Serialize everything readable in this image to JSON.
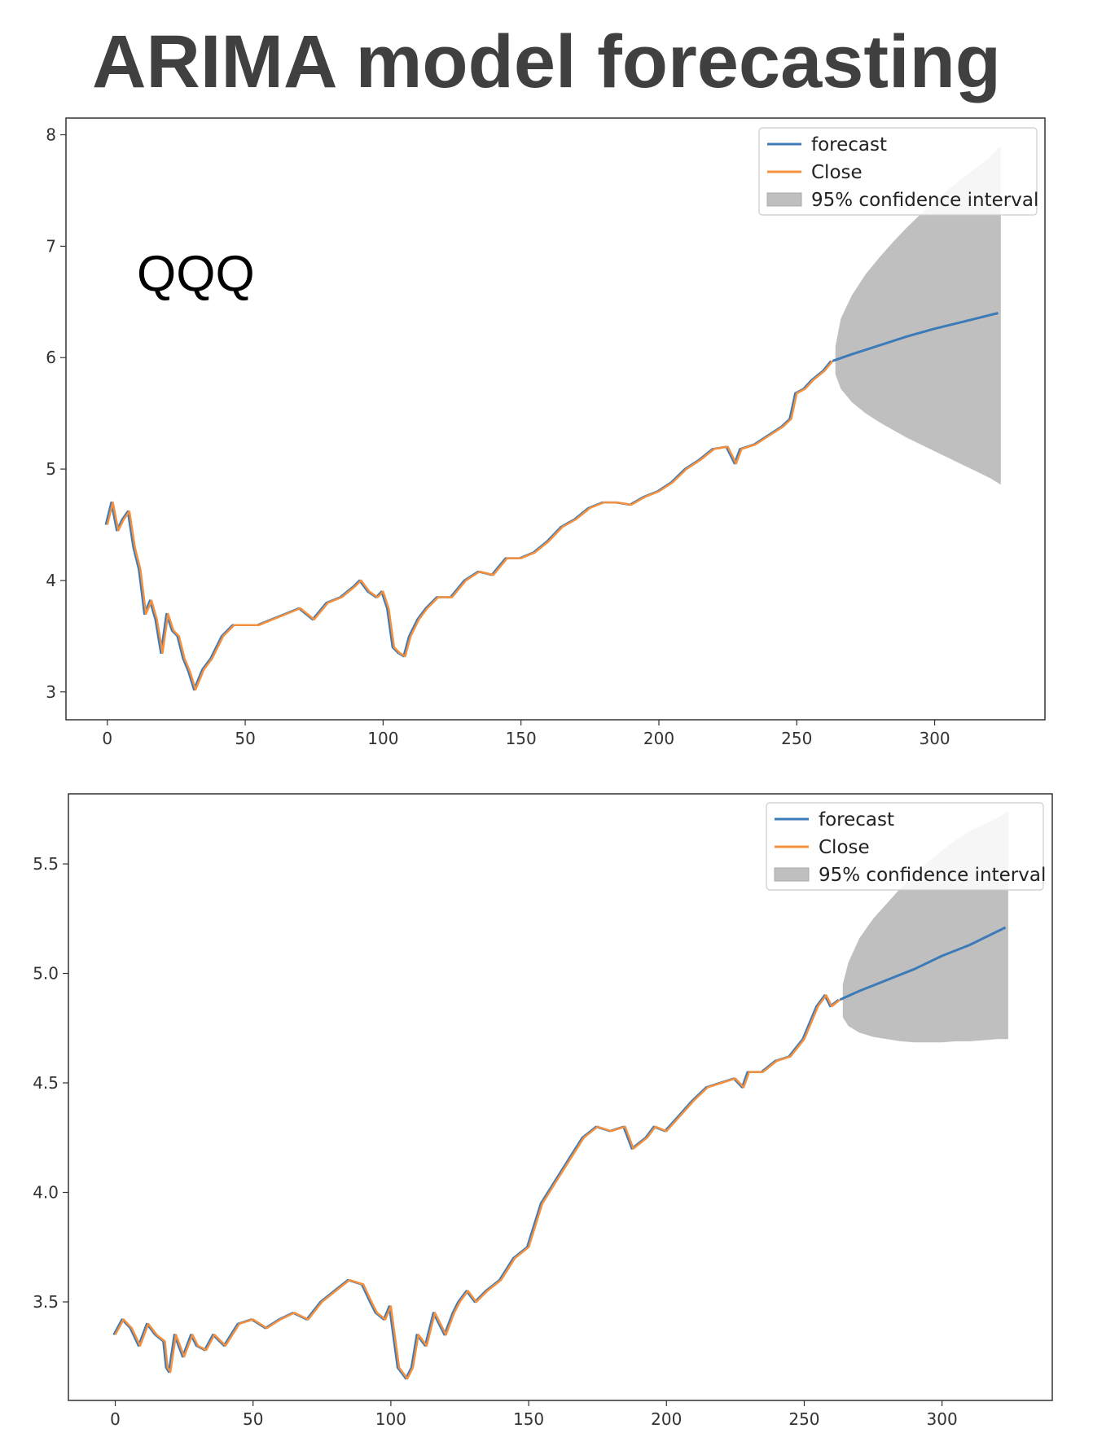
{
  "title": "ARIMA model forecasting",
  "chart_data": [
    {
      "type": "line",
      "annotation": "QQQ",
      "xlim": [
        -15,
        340
      ],
      "ylim": [
        2.75,
        8.15
      ],
      "xticks": [
        0,
        50,
        100,
        150,
        200,
        250,
        300
      ],
      "xtick_labels": [
        "0",
        "50",
        "100",
        "150",
        "200",
        "250",
        "300"
      ],
      "yticks": [
        3,
        4,
        5,
        6,
        7,
        8
      ],
      "ytick_labels": [
        "3",
        "4",
        "5",
        "6",
        "7",
        "8"
      ],
      "legend": {
        "position": "upper-right",
        "entries": [
          {
            "label": "forecast",
            "color": "#3d7ab8",
            "kind": "line"
          },
          {
            "label": "Close",
            "color": "#f5913e",
            "kind": "line"
          },
          {
            "label": "95% confidence interval",
            "color": "#bfbfbf",
            "kind": "patch"
          }
        ]
      },
      "series": [
        {
          "name": "Close",
          "x": [
            0,
            2,
            4,
            6,
            8,
            10,
            12,
            14,
            16,
            18,
            20,
            22,
            24,
            26,
            28,
            30,
            32,
            35,
            38,
            42,
            46,
            50,
            55,
            60,
            65,
            70,
            75,
            80,
            85,
            90,
            92,
            95,
            98,
            100,
            102,
            104,
            106,
            108,
            110,
            113,
            116,
            120,
            125,
            130,
            135,
            140,
            145,
            150,
            155,
            160,
            165,
            170,
            175,
            180,
            185,
            190,
            195,
            200,
            205,
            210,
            215,
            220,
            225,
            228,
            230,
            235,
            240,
            245,
            248,
            250,
            253,
            256,
            260,
            263
          ],
          "values": [
            4.5,
            4.7,
            4.45,
            4.55,
            4.62,
            4.3,
            4.1,
            3.7,
            3.82,
            3.65,
            3.35,
            3.7,
            3.55,
            3.5,
            3.3,
            3.18,
            3.02,
            3.2,
            3.3,
            3.5,
            3.6,
            3.6,
            3.6,
            3.65,
            3.7,
            3.75,
            3.65,
            3.8,
            3.85,
            3.95,
            4.0,
            3.9,
            3.85,
            3.9,
            3.75,
            3.4,
            3.35,
            3.32,
            3.5,
            3.65,
            3.75,
            3.85,
            3.85,
            4.0,
            4.08,
            4.05,
            4.2,
            4.2,
            4.25,
            4.35,
            4.48,
            4.55,
            4.65,
            4.7,
            4.7,
            4.68,
            4.75,
            4.8,
            4.88,
            5.0,
            5.08,
            5.18,
            5.2,
            5.05,
            5.18,
            5.22,
            5.3,
            5.38,
            5.45,
            5.68,
            5.72,
            5.8,
            5.88,
            5.97
          ]
        },
        {
          "name": "forecast",
          "x": [
            263,
            270,
            280,
            290,
            300,
            310,
            323
          ],
          "values": [
            5.97,
            6.03,
            6.11,
            6.19,
            6.26,
            6.32,
            6.4
          ]
        }
      ],
      "confidence_interval": {
        "x": [
          264,
          266,
          270,
          275,
          280,
          285,
          290,
          295,
          300,
          305,
          310,
          315,
          320,
          324
        ],
        "upper": [
          6.1,
          6.35,
          6.56,
          6.75,
          6.9,
          7.04,
          7.17,
          7.29,
          7.4,
          7.51,
          7.61,
          7.7,
          7.8,
          7.9
        ],
        "lower": [
          5.85,
          5.72,
          5.6,
          5.5,
          5.42,
          5.35,
          5.28,
          5.22,
          5.16,
          5.1,
          5.04,
          4.98,
          4.92,
          4.86
        ]
      }
    },
    {
      "type": "line",
      "xlim": [
        -17,
        340
      ],
      "ylim": [
        3.05,
        5.82
      ],
      "xticks": [
        0,
        50,
        100,
        150,
        200,
        250,
        300
      ],
      "xtick_labels": [
        "0",
        "50",
        "100",
        "150",
        "200",
        "250",
        "300"
      ],
      "yticks": [
        3.5,
        4.0,
        4.5,
        5.0,
        5.5
      ],
      "ytick_labels": [
        "3.5",
        "4.0",
        "4.5",
        "5.0",
        "5.5"
      ],
      "legend": {
        "position": "upper-right",
        "entries": [
          {
            "label": "forecast",
            "color": "#3d7ab8",
            "kind": "line"
          },
          {
            "label": "Close",
            "color": "#f5913e",
            "kind": "line"
          },
          {
            "label": "95% confidence interval",
            "color": "#bfbfbf",
            "kind": "patch"
          }
        ]
      },
      "series": [
        {
          "name": "Close",
          "x": [
            0,
            3,
            6,
            9,
            12,
            15,
            18,
            19,
            20,
            22,
            25,
            28,
            30,
            33,
            36,
            40,
            45,
            50,
            55,
            60,
            65,
            70,
            75,
            80,
            85,
            90,
            93,
            95,
            98,
            100,
            103,
            106,
            108,
            110,
            113,
            116,
            120,
            123,
            125,
            128,
            131,
            135,
            140,
            145,
            150,
            155,
            160,
            165,
            170,
            175,
            180,
            185,
            188,
            190,
            193,
            196,
            200,
            205,
            210,
            215,
            220,
            225,
            228,
            230,
            235,
            240,
            245,
            250,
            255,
            258,
            260,
            263
          ],
          "values": [
            3.35,
            3.42,
            3.38,
            3.3,
            3.4,
            3.35,
            3.32,
            3.2,
            3.18,
            3.35,
            3.25,
            3.35,
            3.3,
            3.28,
            3.35,
            3.3,
            3.4,
            3.42,
            3.38,
            3.42,
            3.45,
            3.42,
            3.5,
            3.55,
            3.6,
            3.58,
            3.5,
            3.45,
            3.42,
            3.48,
            3.2,
            3.15,
            3.2,
            3.35,
            3.3,
            3.45,
            3.35,
            3.45,
            3.5,
            3.55,
            3.5,
            3.55,
            3.6,
            3.7,
            3.75,
            3.95,
            4.05,
            4.15,
            4.25,
            4.3,
            4.28,
            4.3,
            4.2,
            4.22,
            4.25,
            4.3,
            4.28,
            4.35,
            4.42,
            4.48,
            4.5,
            4.52,
            4.48,
            4.55,
            4.55,
            4.6,
            4.62,
            4.7,
            4.85,
            4.9,
            4.85,
            4.88
          ]
        },
        {
          "name": "forecast",
          "x": [
            263,
            270,
            280,
            290,
            300,
            310,
            323
          ],
          "values": [
            4.88,
            4.92,
            4.97,
            5.02,
            5.08,
            5.13,
            5.21
          ]
        }
      ],
      "confidence_interval": {
        "x": [
          264,
          266,
          270,
          275,
          280,
          285,
          290,
          295,
          300,
          305,
          310,
          315,
          320,
          324
        ],
        "upper": [
          4.95,
          5.05,
          5.16,
          5.25,
          5.32,
          5.39,
          5.45,
          5.51,
          5.56,
          5.61,
          5.65,
          5.68,
          5.71,
          5.74
        ],
        "lower": [
          4.8,
          4.76,
          4.73,
          4.71,
          4.7,
          4.69,
          4.685,
          4.685,
          4.685,
          4.69,
          4.69,
          4.695,
          4.7,
          4.7
        ]
      }
    }
  ]
}
